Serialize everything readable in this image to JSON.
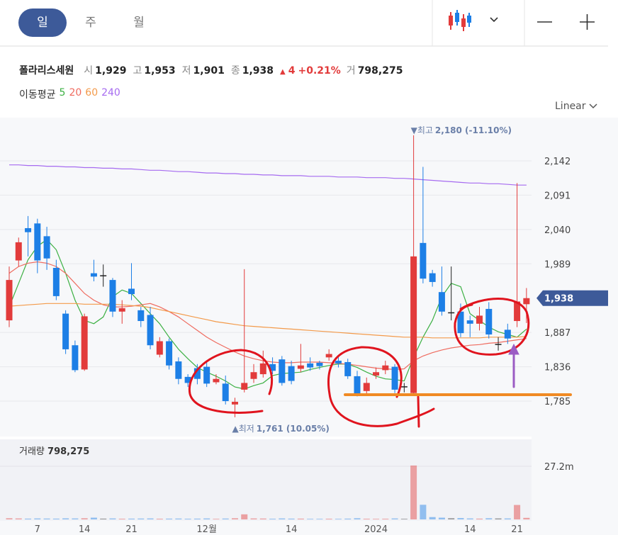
{
  "tabs": [
    "일",
    "주",
    "월"
  ],
  "header": {
    "name": "폴라리스세원",
    "open_label": "시",
    "open": "1,929",
    "high_label": "고",
    "high": "1,953",
    "low_label": "저",
    "low": "1,901",
    "close_label": "종",
    "close": "1,938",
    "change_arrow": "▲",
    "change": "4",
    "change_pct": "+0.21%",
    "volume_label": "거",
    "volume": "798,275"
  },
  "ma_title": "이동평균",
  "scale_button": "Linear",
  "volume_legend": {
    "title": "거래량",
    "value": "798,275"
  },
  "chart_data": {
    "type": "candlestick",
    "categories": [
      null,
      null,
      null,
      "7",
      null,
      null,
      null,
      null,
      "14",
      null,
      null,
      null,
      null,
      "21",
      null,
      null,
      null,
      null,
      null,
      null,
      null,
      "12월",
      null,
      null,
      null,
      null,
      null,
      null,
      null,
      null,
      "14",
      null,
      null,
      null,
      null,
      null,
      null,
      null,
      null,
      "2024",
      null,
      null,
      null,
      null,
      null,
      null,
      null,
      null,
      null,
      "14",
      null,
      null,
      null,
      null,
      "21",
      null
    ],
    "open": [
      1905,
      1994,
      2042,
      2049,
      2030,
      1983,
      1915,
      1868,
      1832,
      1975,
      1972,
      1965,
      1918,
      1952,
      1920,
      1913,
      1854,
      1874,
      1844,
      1821,
      1834,
      1836,
      1813,
      1811,
      1780,
      1802,
      1818,
      1825,
      1840,
      1847,
      1837,
      1833,
      1841,
      1842,
      1850,
      1845,
      1843,
      1822,
      1800,
      1823,
      1831,
      1836,
      1807,
      1797,
      2020,
      1975,
      1947,
      1917,
      1918,
      1905,
      1900,
      1922,
      1870,
      1891,
      1904,
      1929
    ],
    "high": [
      1985,
      2028,
      2060,
      2056,
      2044,
      1995,
      1920,
      1875,
      1915,
      1995,
      1988,
      1968,
      1935,
      1990,
      1925,
      1925,
      1880,
      1878,
      1850,
      1825,
      1840,
      1845,
      1825,
      1823,
      1790,
      1981,
      1840,
      1860,
      1850,
      1852,
      1845,
      1870,
      1850,
      1845,
      1862,
      1850,
      1848,
      1830,
      1820,
      1835,
      1845,
      1840,
      1812,
      2180,
      2133,
      1980,
      1985,
      1985,
      1930,
      1912,
      1925,
      1932,
      1880,
      1900,
      2109,
      1953
    ],
    "low": [
      1895,
      1985,
      2000,
      1975,
      1980,
      1935,
      1855,
      1828,
      1830,
      1963,
      1955,
      1910,
      1900,
      1935,
      1895,
      1862,
      1850,
      1832,
      1810,
      1806,
      1810,
      1806,
      1810,
      1780,
      1761,
      1798,
      1812,
      1820,
      1825,
      1808,
      1810,
      1828,
      1830,
      1832,
      1845,
      1835,
      1818,
      1792,
      1795,
      1818,
      1825,
      1797,
      1798,
      1795,
      1960,
      1955,
      1912,
      1905,
      1880,
      1880,
      1890,
      1878,
      1860,
      1870,
      1895,
      1901
    ],
    "close": [
      1965,
      2021,
      2036,
      1994,
      1997,
      1941,
      1862,
      1831,
      1911,
      1970,
      1972,
      1918,
      1923,
      1944,
      1904,
      1868,
      1874,
      1838,
      1818,
      1812,
      1818,
      1811,
      1818,
      1785,
      1784,
      1812,
      1828,
      1841,
      1830,
      1812,
      1815,
      1838,
      1835,
      1837,
      1855,
      1841,
      1822,
      1796,
      1812,
      1828,
      1838,
      1802,
      1807,
      2000,
      1967,
      1962,
      1918,
      1917,
      1886,
      1900,
      1912,
      1884,
      1870,
      1878,
      1933,
      1938
    ],
    "volume": [
      600000,
      500000,
      400000,
      500000,
      450000,
      400000,
      550000,
      500000,
      600000,
      900000,
      400000,
      500000,
      350000,
      400000,
      450000,
      500000,
      350000,
      400000,
      450000,
      350000,
      400000,
      500000,
      300000,
      450000,
      600000,
      2600000,
      500000,
      450000,
      350000,
      500000,
      400000,
      400000,
      300000,
      300000,
      350000,
      300000,
      400000,
      600000,
      350000,
      300000,
      350000,
      500000,
      300000,
      27600000,
      7500000,
      1200000,
      900000,
      600000,
      700000,
      500000,
      400000,
      600000,
      500000,
      500000,
      7400000,
      798275
    ],
    "up_color": "#e23b3b",
    "down_color": "#1d7fe6",
    "flat_color": "#222222",
    "moving_averages": [
      {
        "name": "5",
        "color": "#3cb043",
        "values": [
          1925,
          1960,
          1995,
          2015,
          2025,
          2010,
          1975,
          1935,
          1905,
          1900,
          1910,
          1940,
          1950,
          1945,
          1930,
          1915,
          1900,
          1880,
          1862,
          1848,
          1835,
          1828,
          1822,
          1815,
          1806,
          1803,
          1808,
          1812,
          1823,
          1826,
          1827,
          1828,
          1832,
          1835,
          1838,
          1840,
          1840,
          1835,
          1828,
          1822,
          1818,
          1817,
          1815,
          1850,
          1880,
          1905,
          1940,
          1960,
          1955,
          1915,
          1905,
          1895,
          1888,
          1884,
          1880,
          1892
        ]
      },
      {
        "name": "20",
        "color": "#ef6b5f",
        "values": [
          1975,
          1985,
          1990,
          1992,
          1990,
          1985,
          1975,
          1960,
          1945,
          1935,
          1928,
          1925,
          1925,
          1926,
          1928,
          1930,
          1925,
          1918,
          1910,
          1900,
          1890,
          1880,
          1872,
          1865,
          1858,
          1852,
          1848,
          1845,
          1843,
          1842,
          1842,
          1843,
          1843,
          1843,
          1842,
          1841,
          1840,
          1838,
          1836,
          1834,
          1833,
          1832,
          1833,
          1845,
          1852,
          1857,
          1861,
          1864,
          1866,
          1868,
          1869,
          1871,
          1872,
          1874,
          1876,
          1878
        ]
      },
      {
        "name": "60",
        "color": "#f39a4a",
        "values": [
          1926,
          1927,
          1928,
          1929,
          1930,
          1930,
          1930,
          1930,
          1929,
          1929,
          1929,
          1929,
          1928,
          1927,
          1926,
          1924,
          1921,
          1918,
          1915,
          1912,
          1909,
          1906,
          1903,
          1901,
          1899,
          1897,
          1896,
          1895,
          1894,
          1893,
          1892,
          1891,
          1890,
          1889,
          1888,
          1887,
          1886,
          1885,
          1884,
          1883,
          1882,
          1881,
          1880,
          1880,
          1880,
          1879,
          1879,
          1879,
          1879,
          1879,
          1879,
          1880,
          1880,
          1880,
          1880,
          1881
        ]
      },
      {
        "name": "240",
        "color": "#a66bf0",
        "values": [
          2136,
          2136,
          2135,
          2135,
          2134,
          2134,
          2133,
          2133,
          2132,
          2132,
          2131,
          2131,
          2130,
          2130,
          2129,
          2128,
          2128,
          2127,
          2126,
          2126,
          2125,
          2124,
          2124,
          2123,
          2123,
          2122,
          2122,
          2121,
          2121,
          2120,
          2120,
          2120,
          2119,
          2119,
          2119,
          2118,
          2118,
          2118,
          2117,
          2117,
          2117,
          2116,
          2116,
          2115,
          2114,
          2113,
          2112,
          2111,
          2110,
          2109,
          2109,
          2108,
          2108,
          2107,
          2106,
          2106
        ]
      }
    ],
    "ylim": [
      1744,
      2202
    ],
    "yticks": [
      {
        "value": 2142,
        "label": "2,142"
      },
      {
        "value": 2091,
        "label": "2,091"
      },
      {
        "value": 2040,
        "label": "2,040"
      },
      {
        "value": 1989,
        "label": "1,989"
      },
      {
        "value": 1887,
        "label": "1,887"
      },
      {
        "value": 1836,
        "label": "1,836"
      },
      {
        "value": 1785,
        "label": "1,785"
      }
    ],
    "grid": true,
    "last_price": {
      "value": 1938,
      "label": "1,938"
    },
    "max_label": "▼최고",
    "max_value_label": "2,180 (-11.10%)",
    "min_label": "▲최저",
    "min_value_label": "1,761 (10.05%)",
    "volume_ylim": [
      0,
      41000000
    ],
    "volume_ticks": [
      {
        "value": 27200000,
        "label": "27.2m"
      }
    ]
  }
}
